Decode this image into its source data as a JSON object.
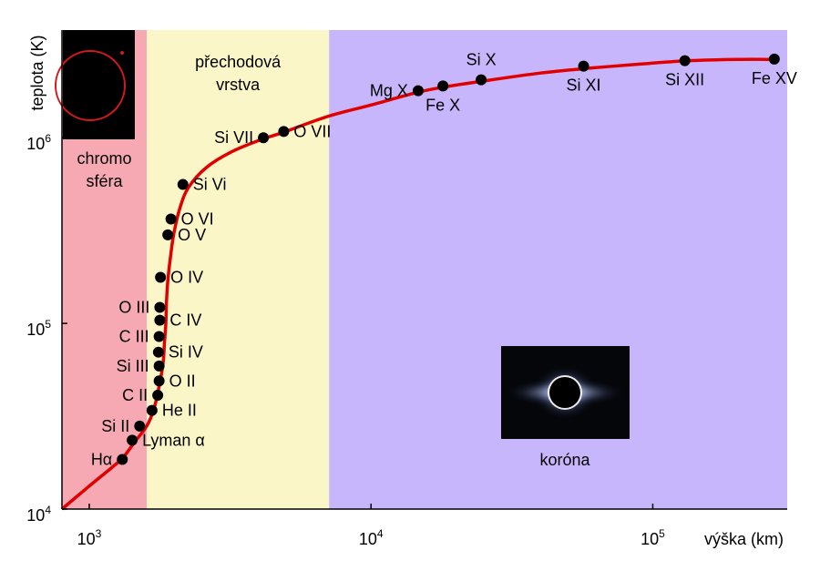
{
  "chart_data": {
    "type": "line",
    "xlabel": "výška (km)",
    "ylabel": "teplota (K)",
    "xscale": "log",
    "yscale": "log",
    "xlim": [
      800,
      300000
    ],
    "ylim": [
      10000,
      3800000
    ],
    "x_ticks": [
      {
        "value": 1000,
        "base": "10",
        "exp": "3"
      },
      {
        "value": 10000,
        "base": "10",
        "exp": "4"
      },
      {
        "value": 100000,
        "base": "10",
        "exp": "5"
      }
    ],
    "y_ticks": [
      {
        "value": 10000,
        "base": "10",
        "exp": "4"
      },
      {
        "value": 100000,
        "base": "10",
        "exp": "5"
      },
      {
        "value": 1000000,
        "base": "10",
        "exp": "6"
      }
    ],
    "regions": [
      {
        "name": "chromo\nsféra",
        "x_range": [
          800,
          1600
        ],
        "color": "#f6a9b3"
      },
      {
        "name": "přechodová\nvrstva",
        "x_range": [
          1600,
          7100
        ],
        "color": "#fbf6c8"
      },
      {
        "name": "",
        "x_range": [
          7100,
          300000
        ],
        "color": "#c7b6fb"
      }
    ],
    "curve_color": "#e00000",
    "curve": {
      "x": [
        800,
        1000,
        1200,
        1320,
        1450,
        1600,
        1700,
        1780,
        1830,
        1850,
        1870,
        1880,
        1900,
        1950,
        2000,
        2100,
        2250,
        2600,
        3200,
        4100,
        4900,
        7000,
        10000,
        14500,
        18000,
        25000,
        40000,
        60000,
        90000,
        130000,
        200000,
        270000
      ],
      "y": [
        10000,
        13300,
        16700,
        19000,
        23000,
        28000,
        35000,
        48000,
        62000,
        80000,
        100000,
        130000,
        170000,
        240000,
        310000,
        420000,
        540000,
        690000,
        840000,
        980000,
        1070000,
        1300000,
        1500000,
        1750000,
        1870000,
        2020000,
        2230000,
        2370000,
        2490000,
        2590000,
        2640000,
        2640000
      ]
    },
    "series": [
      {
        "label": "Hα",
        "x": 1310,
        "y": 18500,
        "label_side": "left"
      },
      {
        "label": "Lyman α",
        "x": 1420,
        "y": 23500,
        "label_side": "right"
      },
      {
        "label": "Si II",
        "x": 1510,
        "y": 28000,
        "label_side": "left"
      },
      {
        "label": "He II",
        "x": 1670,
        "y": 34000,
        "label_side": "right"
      },
      {
        "label": "C II",
        "x": 1750,
        "y": 41000,
        "label_side": "left"
      },
      {
        "label": "O II",
        "x": 1770,
        "y": 49000,
        "label_side": "right"
      },
      {
        "label": "Si III",
        "x": 1770,
        "y": 59000,
        "label_side": "left"
      },
      {
        "label": "Si IV",
        "x": 1760,
        "y": 70000,
        "label_side": "right"
      },
      {
        "label": "C III",
        "x": 1770,
        "y": 85000,
        "label_side": "left"
      },
      {
        "label": "C IV",
        "x": 1780,
        "y": 104000,
        "label_side": "right"
      },
      {
        "label": "O III",
        "x": 1780,
        "y": 122000,
        "label_side": "left"
      },
      {
        "label": "O IV",
        "x": 1790,
        "y": 177000,
        "label_side": "right"
      },
      {
        "label": "O V",
        "x": 1900,
        "y": 300000,
        "label_side": "right"
      },
      {
        "label": "O VI",
        "x": 1950,
        "y": 365000,
        "label_side": "right"
      },
      {
        "label": "Si Vi",
        "x": 2150,
        "y": 560000,
        "label_side": "right"
      },
      {
        "label": "Si VII",
        "x": 4150,
        "y": 1000000,
        "label_side": "left"
      },
      {
        "label": "O VII",
        "x": 4900,
        "y": 1080000,
        "label_side": "right"
      },
      {
        "label": "Mg X",
        "x": 14700,
        "y": 1790000,
        "label_side": "left"
      },
      {
        "label": "Fe X",
        "x": 18000,
        "y": 1900000,
        "label_side": "below"
      },
      {
        "label": "Si X",
        "x": 24600,
        "y": 2050000,
        "label_side": "above"
      },
      {
        "label": "Si XI",
        "x": 56800,
        "y": 2430000,
        "label_side": "below"
      },
      {
        "label": "Si XII",
        "x": 130000,
        "y": 2600000,
        "label_side": "below"
      },
      {
        "label": "Fe XV",
        "x": 270000,
        "y": 2650000,
        "label_side": "below"
      }
    ],
    "inset_label": "koróna"
  }
}
